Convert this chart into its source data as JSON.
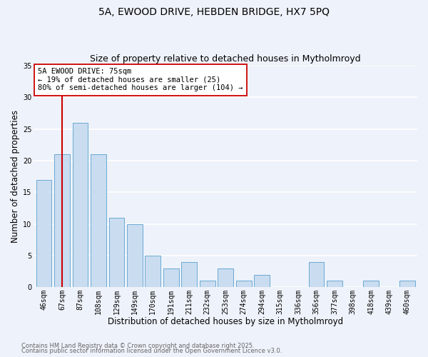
{
  "title1": "5A, EWOOD DRIVE, HEBDEN BRIDGE, HX7 5PQ",
  "title2": "Size of property relative to detached houses in Mytholmroyd",
  "xlabel": "Distribution of detached houses by size in Mytholmroyd",
  "ylabel": "Number of detached properties",
  "bar_labels": [
    "46sqm",
    "67sqm",
    "87sqm",
    "108sqm",
    "129sqm",
    "149sqm",
    "170sqm",
    "191sqm",
    "211sqm",
    "232sqm",
    "253sqm",
    "274sqm",
    "294sqm",
    "315sqm",
    "336sqm",
    "356sqm",
    "377sqm",
    "398sqm",
    "418sqm",
    "439sqm",
    "460sqm"
  ],
  "bar_values": [
    17,
    21,
    26,
    21,
    11,
    10,
    5,
    3,
    4,
    1,
    3,
    1,
    2,
    0,
    0,
    4,
    1,
    0,
    1,
    0,
    1
  ],
  "bar_color": "#c9dcf0",
  "bar_edge_color": "#6aaad4",
  "vline_x": 1,
  "vline_color": "#cc0000",
  "annotation_title": "5A EWOOD DRIVE: 75sqm",
  "annotation_line1": "← 19% of detached houses are smaller (25)",
  "annotation_line2": "80% of semi-detached houses are larger (104) →",
  "annotation_box_edge": "#cc0000",
  "annotation_box_face": "#ffffff",
  "ylim": [
    0,
    35
  ],
  "yticks": [
    0,
    5,
    10,
    15,
    20,
    25,
    30,
    35
  ],
  "footer1": "Contains HM Land Registry data © Crown copyright and database right 2025.",
  "footer2": "Contains public sector information licensed under the Open Government Licence v3.0.",
  "bg_color": "#eef2fa",
  "plot_bg_color": "#eef2fa",
  "grid_color": "#ffffff",
  "title_fontsize": 10,
  "subtitle_fontsize": 9,
  "axis_label_fontsize": 8.5,
  "tick_fontsize": 7,
  "footer_fontsize": 6,
  "annotation_fontsize": 7.5
}
